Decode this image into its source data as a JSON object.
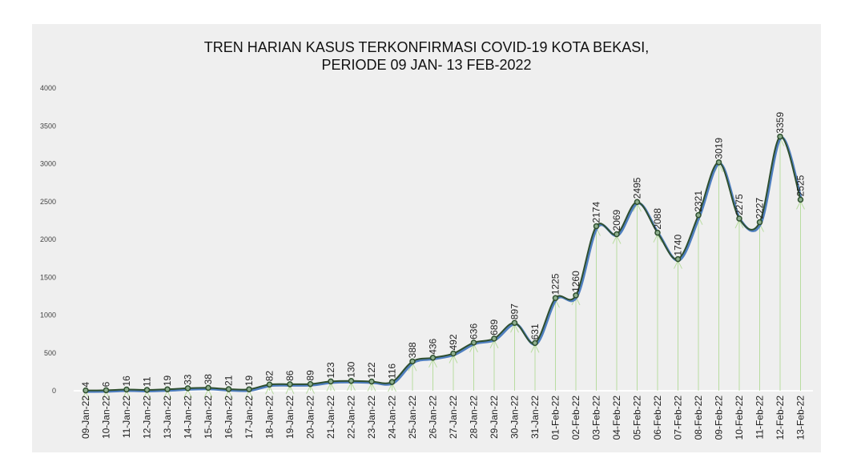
{
  "chart_data": {
    "type": "line",
    "title_line1": "TREN HARIAN KASUS TERKONFIRMASI COVID-19 KOTA BEKASI,",
    "title_line2": "PERIODE 09 JAN- 13 FEB-2022",
    "xlabel": "",
    "ylabel": "",
    "ylim": [
      0,
      4000
    ],
    "yticks": [
      0,
      500,
      1000,
      1500,
      2000,
      2500,
      3000,
      3500,
      4000
    ],
    "grid": false,
    "categories": [
      "09-Jan-22",
      "10-Jan-22",
      "11-Jan-22",
      "12-Jan-22",
      "13-Jan-22",
      "14-Jan-22",
      "15-Jan-22",
      "16-Jan-22",
      "17-Jan-22",
      "18-Jan-22",
      "19-Jan-22",
      "20-Jan-22",
      "21-Jan-22",
      "22-Jan-22",
      "23-Jan-22",
      "24-Jan-22",
      "25-Jan-22",
      "26-Jan-22",
      "27-Jan-22",
      "28-Jan-22",
      "29-Jan-22",
      "30-Jan-22",
      "31-Jan-22",
      "01-Feb-22",
      "02-Feb-22",
      "03-Feb-22",
      "04-Feb-22",
      "05-Feb-22",
      "06-Feb-22",
      "07-Feb-22",
      "08-Feb-22",
      "09-Feb-22",
      "10-Feb-22",
      "11-Feb-22",
      "12-Feb-22",
      "13-Feb-22"
    ],
    "values": [
      4,
      6,
      16,
      11,
      19,
      33,
      38,
      21,
      19,
      82,
      86,
      89,
      123,
      130,
      122,
      116,
      388,
      436,
      492,
      636,
      689,
      897,
      631,
      1225,
      1260,
      2174,
      2069,
      2495,
      2088,
      1740,
      2321,
      3019,
      2275,
      2227,
      3359,
      2525
    ],
    "colors": {
      "line": "#2f4f2f",
      "line_shadow": "#4f7fc0",
      "droplines": "#b8dca0",
      "background": "#efefef"
    }
  }
}
